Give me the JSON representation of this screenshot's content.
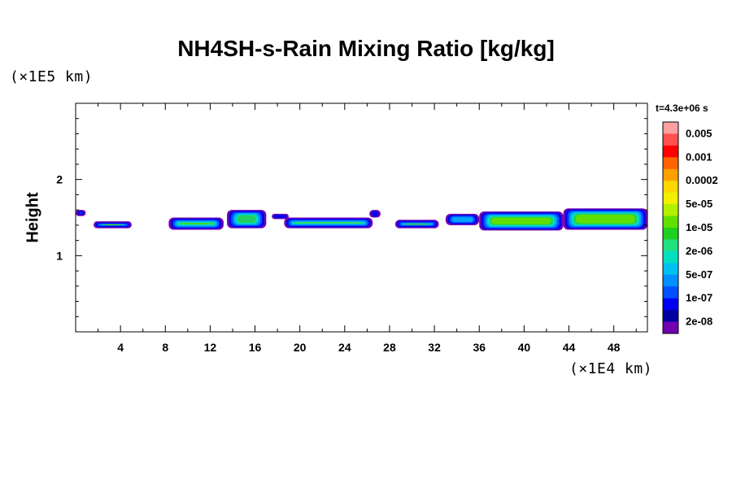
{
  "chart_data": {
    "type": "heatmap",
    "title": "NH4SH-s-Rain Mixing Ratio [kg/kg]",
    "ylabel": "Height",
    "xlabel": "",
    "x_unit": "(×1E4 km)",
    "y_unit": "(×1E5 km)",
    "time_label": "t=4.3e+06 s",
    "xlim": [
      0,
      51
    ],
    "ylim": [
      0,
      3
    ],
    "x_ticks": [
      4,
      8,
      12,
      16,
      20,
      24,
      28,
      32,
      36,
      40,
      44,
      48
    ],
    "y_ticks": [
      1,
      2
    ],
    "x_minor_step": 2,
    "y_minor_step": 0.2,
    "colorbar": {
      "labels": [
        "0.005",
        "0.001",
        "0.0002",
        "5e-05",
        "1e-05",
        "2e-06",
        "5e-07",
        "1e-07",
        "2e-08"
      ],
      "colors": [
        "#ff9f9f",
        "#ff5050",
        "#ff0000",
        "#ff6400",
        "#ffa000",
        "#ffd700",
        "#f0f000",
        "#b4f000",
        "#60e000",
        "#20d020",
        "#20e080",
        "#00e0c0",
        "#00c0f0",
        "#0090ff",
        "#0050ff",
        "#0000f0",
        "#0000a0",
        "#7000b0"
      ]
    },
    "cloud_segments": [
      {
        "x0": 0.0,
        "x1": 0.9,
        "y0": 1.52,
        "y1": 1.6,
        "level": 3
      },
      {
        "x0": 1.6,
        "x1": 5.0,
        "y0": 1.36,
        "y1": 1.45,
        "level": 7
      },
      {
        "x0": 8.3,
        "x1": 13.2,
        "y0": 1.34,
        "y1": 1.5,
        "level": 7
      },
      {
        "x0": 13.5,
        "x1": 17.0,
        "y0": 1.36,
        "y1": 1.6,
        "level": 6
      },
      {
        "x0": 17.5,
        "x1": 19.0,
        "y0": 1.48,
        "y1": 1.55,
        "level": 2
      },
      {
        "x0": 18.6,
        "x1": 26.5,
        "y0": 1.36,
        "y1": 1.5,
        "level": 7
      },
      {
        "x0": 26.2,
        "x1": 27.2,
        "y0": 1.5,
        "y1": 1.6,
        "level": 2
      },
      {
        "x0": 28.5,
        "x1": 32.4,
        "y0": 1.36,
        "y1": 1.47,
        "level": 7
      },
      {
        "x0": 33.0,
        "x1": 36.0,
        "y0": 1.4,
        "y1": 1.55,
        "level": 4
      },
      {
        "x0": 36.0,
        "x1": 43.5,
        "y0": 1.33,
        "y1": 1.58,
        "level": 7
      },
      {
        "x0": 43.5,
        "x1": 51.0,
        "y0": 1.34,
        "y1": 1.62,
        "level": 7
      }
    ]
  }
}
